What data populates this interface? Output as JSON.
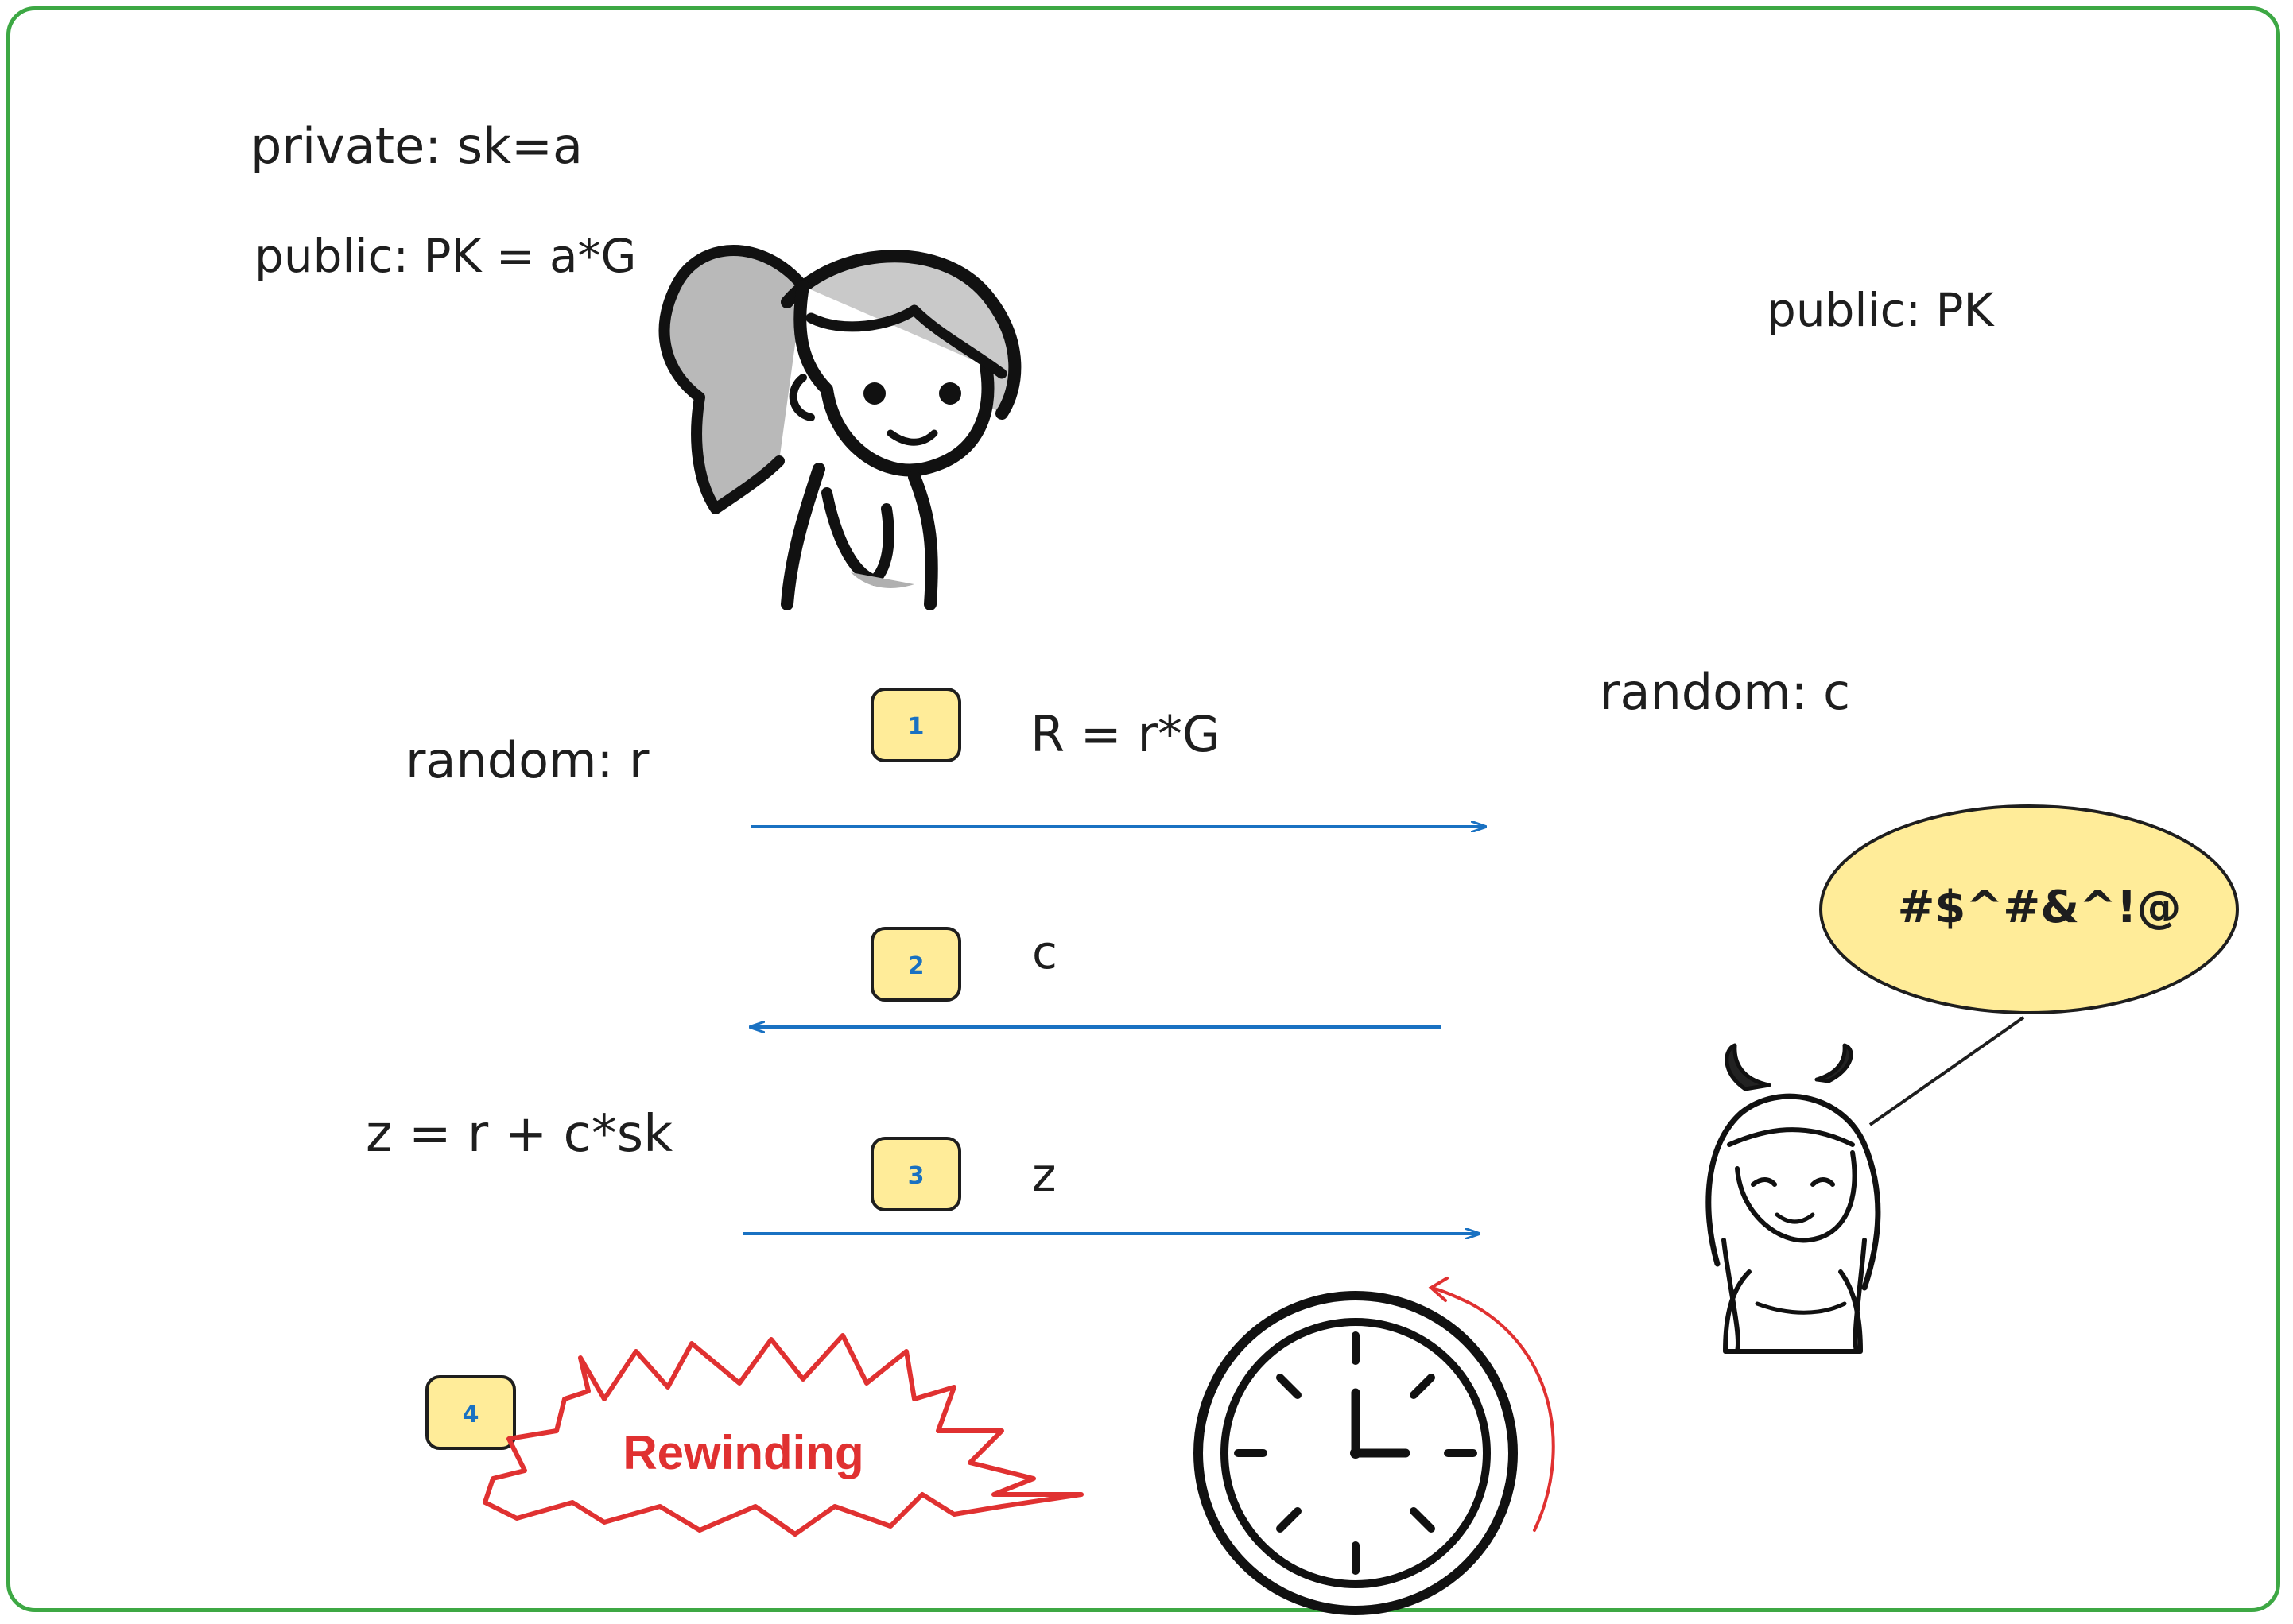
{
  "prover": {
    "private_label": "private: sk=a",
    "public_label": "public: PK = a*G",
    "random_label": "random: r",
    "response_label": "z = r + c*sk"
  },
  "verifier": {
    "public_label": "public: PK",
    "random_label": "random: c",
    "speech": "#$^#&^!@"
  },
  "steps": [
    {
      "badge": "1",
      "message": "R = r*G",
      "direction": "right"
    },
    {
      "badge": "2",
      "message": "c",
      "direction": "left"
    },
    {
      "badge": "3",
      "message": "z",
      "direction": "right"
    },
    {
      "badge": "4",
      "message": "Rewinding"
    }
  ],
  "colors": {
    "frame": "#3da844",
    "arrow": "#1971c2",
    "badge_fill": "#ffec99",
    "badge_text": "#1971c2",
    "speech_fill": "#ffec99",
    "rewind": "#e03131",
    "ink": "#1e1e1e"
  },
  "icons": [
    "prover-character",
    "verifier-devil-character",
    "speech-bubble",
    "clock-icon",
    "rewind-arrow-icon",
    "burst-shape"
  ]
}
